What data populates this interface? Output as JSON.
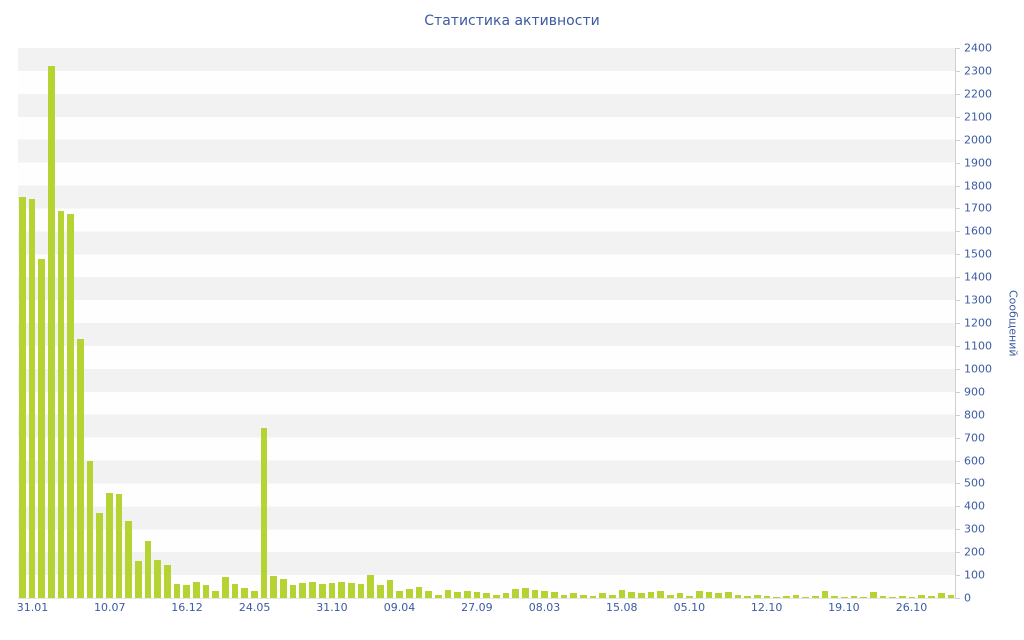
{
  "chart_data": {
    "type": "bar",
    "title": "Статистика активности",
    "ylabel": "Сообщений",
    "xlabel": "",
    "ylim": [
      0,
      2400
    ],
    "y_tick_step": 100,
    "y_ticks": [
      0,
      100,
      200,
      300,
      400,
      500,
      600,
      700,
      800,
      900,
      1000,
      1100,
      1200,
      1300,
      1400,
      1500,
      1600,
      1700,
      1800,
      1900,
      2000,
      2100,
      2200,
      2300,
      2400
    ],
    "x_tick_labels": [
      "31.01",
      "10.07",
      "16.12",
      "24.05",
      "31.10",
      "09.04",
      "27.09",
      "08.03",
      "15.08",
      "05.10",
      "12.10",
      "19.10",
      "26.10"
    ],
    "x_tick_indices": [
      1,
      9,
      17,
      24,
      32,
      39,
      47,
      54,
      62,
      69,
      77,
      85,
      92
    ],
    "values": [
      1750,
      1740,
      1480,
      2320,
      1690,
      1675,
      1130,
      600,
      370,
      460,
      455,
      335,
      160,
      250,
      165,
      145,
      60,
      55,
      70,
      55,
      30,
      90,
      60,
      45,
      30,
      740,
      95,
      85,
      55,
      65,
      70,
      60,
      65,
      70,
      65,
      60,
      100,
      55,
      80,
      30,
      40,
      50,
      30,
      15,
      35,
      25,
      30,
      25,
      20,
      15,
      20,
      40,
      45,
      35,
      30,
      25,
      15,
      20,
      15,
      10,
      20,
      15,
      35,
      25,
      20,
      25,
      30,
      15,
      20,
      10,
      30,
      25,
      20,
      25,
      15,
      10,
      15,
      10,
      5,
      10,
      15,
      5,
      10,
      30,
      10,
      5,
      10,
      5,
      25,
      10,
      5,
      10,
      5,
      15,
      10,
      20,
      15
    ],
    "bar_color": "#b5d434",
    "text_color": "#3c5ba2",
    "band_color": "#f2f2f2",
    "grid": "horizontal-bands",
    "legend": "none"
  }
}
